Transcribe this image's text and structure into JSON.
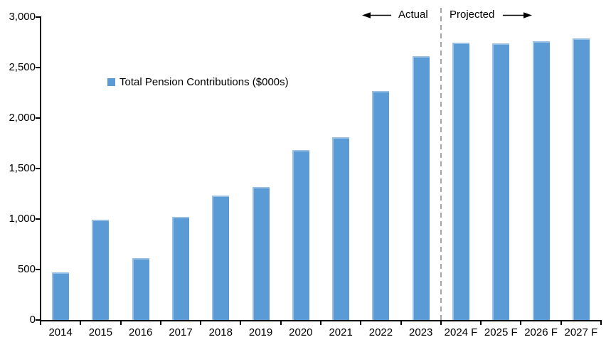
{
  "chart_data": {
    "type": "bar",
    "title": "",
    "categories": [
      "2014",
      "2015",
      "2016",
      "2017",
      "2018",
      "2019",
      "2020",
      "2021",
      "2022",
      "2023",
      "2024 F",
      "2025 F",
      "2026 F",
      "2027 F"
    ],
    "series": [
      {
        "name": "Total Pension Contributions ($000s)",
        "values": [
          470,
          990,
          610,
          1020,
          1230,
          1320,
          1680,
          1810,
          2270,
          2610,
          2750,
          2740,
          2760,
          2790
        ]
      }
    ],
    "xlabel": "",
    "ylabel": "",
    "ylim": [
      0,
      3000
    ],
    "yticks": [
      "0",
      "500",
      "1,000",
      "1,500",
      "2,000",
      "2,500",
      "3,000"
    ],
    "grid": false,
    "legend_position": "inside-upper-left",
    "bar_color": "#5B9BD5",
    "axis_color": "#000000",
    "divider_color": "#A6A6A6",
    "divider_after_index": 10,
    "annotations": {
      "actual": "Actual",
      "projected": "Projected"
    }
  }
}
